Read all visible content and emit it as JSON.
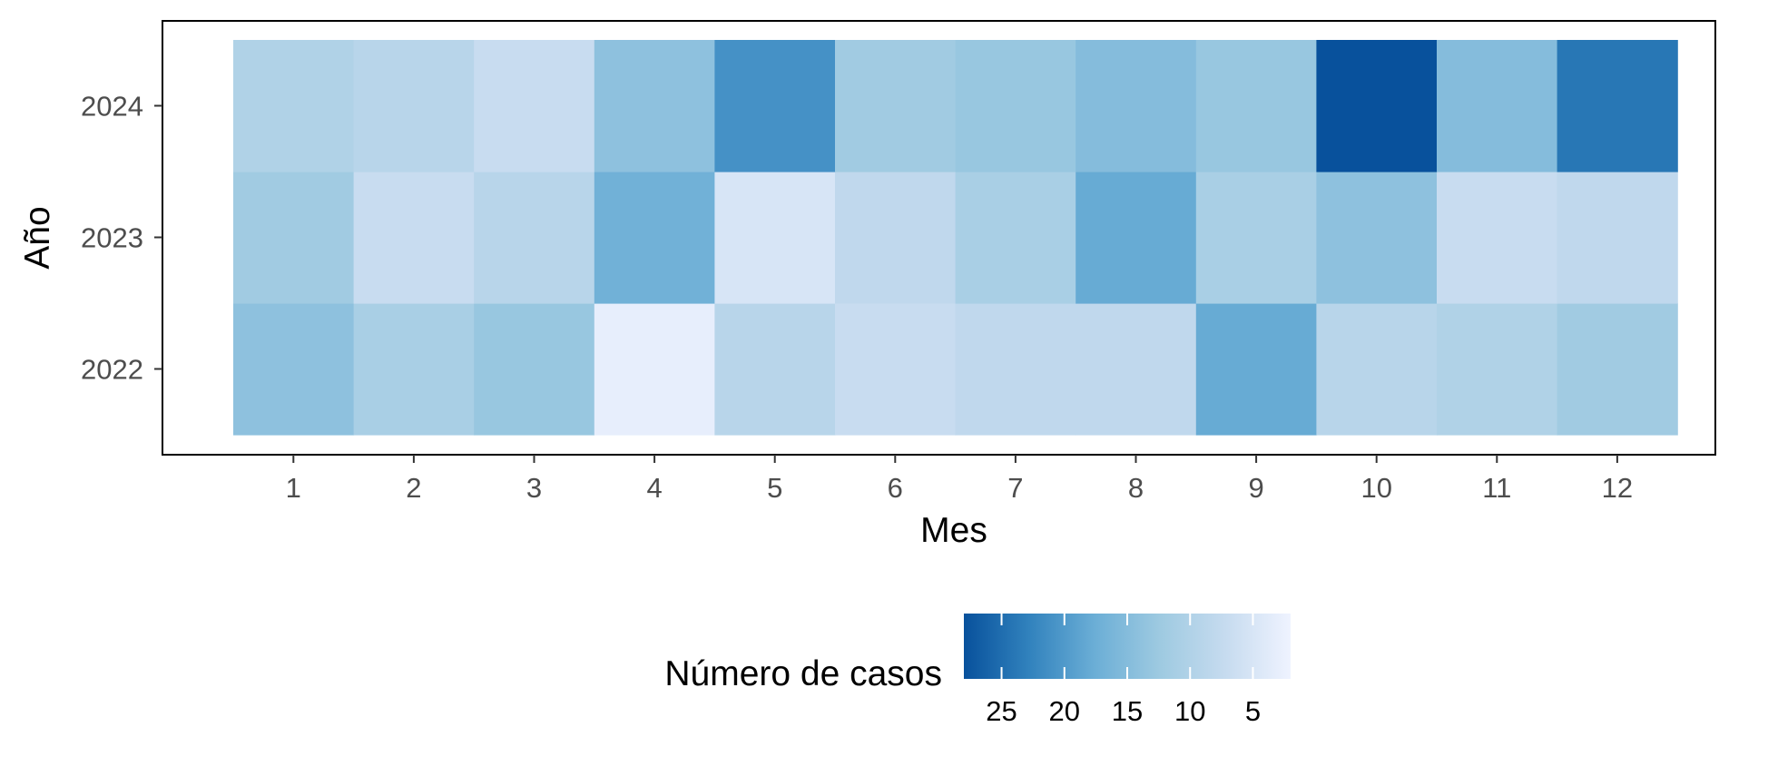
{
  "chart_data": {
    "type": "heatmap",
    "title": "",
    "xlabel": "Mes",
    "ylabel": "Año",
    "x": [
      1,
      2,
      3,
      4,
      5,
      6,
      7,
      8,
      9,
      10,
      11,
      12
    ],
    "y": [
      2022,
      2023,
      2024
    ],
    "values": [
      [
        14,
        11,
        13,
        3,
        9,
        7,
        8,
        8,
        18,
        9,
        10,
        12
      ],
      [
        12,
        7,
        9,
        17,
        5,
        8,
        11,
        18,
        11,
        14,
        7,
        8
      ],
      [
        10,
        9,
        7,
        14,
        21,
        12,
        13,
        15,
        13,
        28,
        15,
        24
      ]
    ],
    "legend": {
      "title": "Número de casos",
      "placement": "bottom",
      "ticks": [
        25,
        20,
        15,
        10,
        5
      ],
      "range": [
        2,
        28
      ],
      "reversed": true
    },
    "colors": {
      "low": "#eff3ff",
      "high": "#08519c",
      "scale": [
        "#eff3ff",
        "#c6dbef",
        "#9ecae1",
        "#6baed6",
        "#3182bd",
        "#08519c"
      ]
    },
    "grid": false
  }
}
